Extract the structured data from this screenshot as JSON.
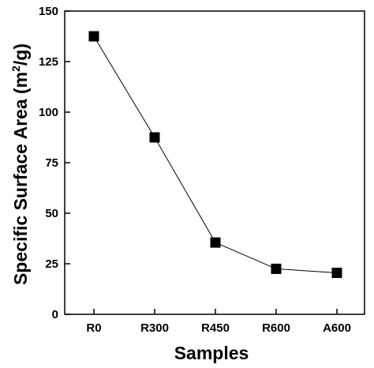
{
  "chart_data": {
    "type": "line",
    "title": "",
    "xlabel": "Samples",
    "ylabel_main": "Specific Surface Area (m",
    "ylabel_sup": "2",
    "ylabel_tail": "/g)",
    "categories": [
      "R0",
      "R300",
      "R450",
      "R600",
      "A600"
    ],
    "series": [
      {
        "values": [
          137.5,
          87.5,
          35.5,
          22.5,
          20.5
        ]
      }
    ],
    "ylim": [
      0,
      150
    ],
    "yticks": [
      "0",
      "25",
      "50",
      "75",
      "100",
      "125",
      "150"
    ],
    "marker": "square",
    "grid": false,
    "legend": "none",
    "colors": {
      "line": "#000000",
      "marker": "#000000",
      "axis": "#000000"
    }
  }
}
